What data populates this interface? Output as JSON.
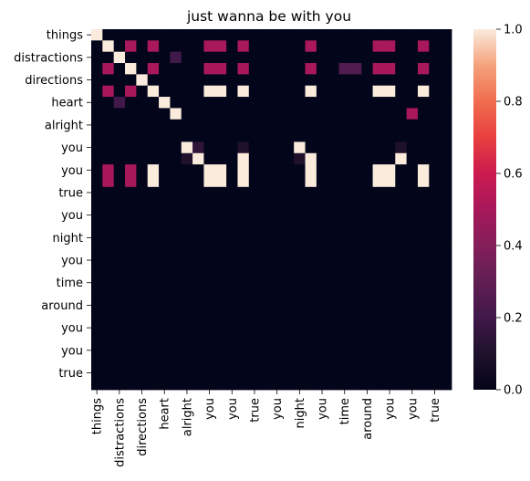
{
  "chart_data": {
    "type": "heatmap",
    "title": "just wanna be with you",
    "xlabel": "",
    "ylabel": "",
    "row_tick_labels": [
      "things",
      "distractions",
      "directions",
      "heart",
      "alright",
      "you",
      "you",
      "true",
      "you",
      "night",
      "you",
      "time",
      "around",
      "you",
      "you",
      "true"
    ],
    "col_tick_labels": [
      "things",
      "distractions",
      "directions",
      "heart",
      "alright",
      "you",
      "you",
      "true",
      "you",
      "night",
      "you",
      "time",
      "around",
      "you",
      "you",
      "true"
    ],
    "tokens": [
      "things",
      "",
      "distractions",
      "",
      "directions",
      "",
      "heart",
      "",
      "alright",
      "",
      "you",
      "",
      "you",
      "",
      "true",
      "",
      "you",
      "",
      "night",
      "",
      "you",
      "",
      "time",
      "",
      "around",
      "",
      "you",
      "",
      "you",
      "",
      "true",
      ""
    ],
    "colorbar": {
      "min": 0,
      "max": 1,
      "ticks": [
        "0.0",
        "0.2",
        "0.4",
        "0.6",
        "0.8",
        "1.0"
      ],
      "colormap": "rocket"
    },
    "values": [
      [
        1,
        0,
        0,
        0,
        0,
        0,
        0,
        0,
        0,
        0,
        0,
        0,
        0,
        0,
        0,
        0,
        0,
        0,
        0,
        0,
        0,
        0,
        0,
        0,
        0,
        0,
        0,
        0,
        0,
        0,
        0,
        0
      ],
      [
        0,
        1,
        0,
        0.5,
        0,
        0.5,
        0,
        0,
        0,
        0,
        0.5,
        0.5,
        0,
        0.5,
        0,
        0,
        0,
        0,
        0,
        0.5,
        0,
        0,
        0,
        0,
        0,
        0.5,
        0.5,
        0,
        0,
        0.5,
        0,
        0
      ],
      [
        0,
        0,
        1,
        0,
        0,
        0,
        0,
        0.2,
        0,
        0,
        0,
        0,
        0,
        0,
        0,
        0,
        0,
        0,
        0,
        0,
        0,
        0,
        0,
        0,
        0,
        0,
        0,
        0,
        0,
        0,
        0,
        0
      ],
      [
        0,
        0.5,
        0,
        1,
        0,
        0.5,
        0,
        0,
        0,
        0,
        0.5,
        0.5,
        0,
        0.5,
        0,
        0,
        0,
        0,
        0,
        0.5,
        0,
        0,
        0.25,
        0.25,
        0,
        0.5,
        0.5,
        0,
        0,
        0.5,
        0,
        0
      ],
      [
        0,
        0,
        0,
        0,
        1,
        0,
        0,
        0,
        0,
        0,
        0,
        0,
        0,
        0,
        0,
        0,
        0,
        0,
        0,
        0,
        0,
        0,
        0,
        0,
        0,
        0,
        0,
        0,
        0,
        0,
        0,
        0
      ],
      [
        0,
        0.5,
        0,
        0.5,
        0,
        1,
        0,
        0,
        0,
        0,
        1,
        1,
        0,
        1,
        0,
        0,
        0,
        0,
        0,
        1,
        0,
        0,
        0,
        0,
        0,
        1,
        1,
        0,
        0,
        1,
        0,
        0
      ],
      [
        0,
        0,
        0.2,
        0,
        0,
        0,
        1,
        0,
        0,
        0,
        0,
        0,
        0,
        0,
        0,
        0,
        0,
        0,
        0,
        0,
        0,
        0,
        0,
        0,
        0,
        0,
        0,
        0,
        0,
        0,
        0,
        0
      ],
      [
        0,
        0,
        0,
        0,
        0,
        0,
        0,
        1,
        0,
        0,
        0,
        0,
        0,
        0,
        0,
        0,
        0,
        0,
        0,
        0,
        0,
        0,
        0,
        0,
        0,
        0,
        0,
        0,
        0.5,
        0,
        0,
        0
      ],
      [
        0,
        0,
        0,
        0,
        0,
        0,
        0,
        0,
        0,
        0,
        0,
        0,
        0,
        0,
        0,
        0,
        0,
        0,
        0,
        0,
        0,
        0,
        0,
        0,
        0,
        0,
        0,
        0,
        0,
        0,
        0,
        0
      ],
      [
        0,
        0,
        0,
        0,
        0,
        0,
        0,
        0,
        0,
        0,
        0,
        0,
        0,
        0,
        0,
        0,
        0,
        0,
        0,
        0,
        0,
        0,
        0,
        0,
        0,
        0,
        0,
        0,
        0,
        0,
        0,
        0
      ],
      [
        0,
        0,
        0,
        0,
        0,
        0,
        0,
        0,
        1,
        0.15,
        0,
        0,
        0,
        0.1,
        0,
        0,
        0,
        0,
        1,
        0,
        0,
        0,
        0,
        0,
        0,
        0,
        0,
        0.1,
        0,
        0,
        0,
        0
      ],
      [
        0,
        0,
        0,
        0,
        0,
        0,
        0,
        0,
        0.1,
        1,
        0,
        0,
        0,
        1,
        0,
        0,
        0,
        0,
        0.1,
        1,
        0,
        0,
        0,
        0,
        0,
        0,
        0,
        1,
        0,
        0,
        0,
        0
      ],
      [
        0,
        0.5,
        0,
        0.5,
        0,
        1,
        0,
        0,
        0,
        0,
        1,
        1,
        0,
        1,
        0,
        0,
        0,
        0,
        0,
        1,
        0,
        0,
        0,
        0,
        0,
        1,
        1,
        0,
        0,
        1,
        0,
        0
      ],
      [
        0,
        0.5,
        0,
        0.5,
        0,
        1,
        0,
        0,
        0,
        0,
        1,
        1,
        0,
        1,
        0,
        0,
        0,
        0,
        0,
        1,
        0,
        0,
        0,
        0,
        0,
        1,
        1,
        0,
        0,
        1,
        0,
        0
      ],
      [
        0,
        0,
        0,
        0,
        0,
        0,
        0,
        0,
        0,
        0,
        0,
        0,
        0,
        0,
        0,
        0,
        0,
        0,
        0,
        0,
        0,
        0,
        0,
        0,
        0,
        0,
        0,
        0,
        0,
        0,
        0,
        0
      ],
      [
        0,
        0,
        0,
        0,
        0,
        0,
        0,
        0,
        0,
        0,
        0,
        0,
        0,
        0,
        0,
        0,
        0,
        0,
        0,
        0,
        0,
        0,
        0,
        0,
        0,
        0,
        0,
        0,
        0,
        0,
        0,
        0
      ],
      [
        0,
        0,
        0,
        0,
        0,
        0,
        0,
        0,
        0,
        0,
        0,
        0,
        0,
        0,
        0,
        0,
        0,
        0,
        0,
        0,
        0,
        0,
        0,
        0,
        0,
        0,
        0,
        0,
        0,
        0,
        0,
        0
      ],
      [
        0,
        0,
        0,
        0,
        0,
        0,
        0,
        0,
        0,
        0,
        0,
        0,
        0,
        0,
        0,
        0,
        0,
        0,
        0,
        0,
        0,
        0,
        0,
        0,
        0,
        0,
        0,
        0,
        0,
        0,
        0,
        0
      ],
      [
        0,
        0,
        0,
        0,
        0,
        0,
        0,
        0,
        0,
        0,
        0,
        0,
        0,
        0,
        0,
        0,
        0,
        0,
        0,
        0,
        0,
        0,
        0,
        0,
        0,
        0,
        0,
        0,
        0,
        0,
        0,
        0
      ],
      [
        0,
        0,
        0,
        0,
        0,
        0,
        0,
        0,
        0,
        0,
        0,
        0,
        0,
        0,
        0,
        0,
        0,
        0,
        0,
        0,
        0,
        0,
        0,
        0,
        0,
        0,
        0,
        0,
        0,
        0,
        0,
        0
      ],
      [
        0,
        0,
        0,
        0,
        0,
        0,
        0,
        0,
        0,
        0,
        0,
        0,
        0,
        0,
        0,
        0,
        0,
        0,
        0,
        0,
        0,
        0,
        0,
        0,
        0,
        0,
        0,
        0,
        0,
        0,
        0,
        0
      ],
      [
        0,
        0,
        0,
        0,
        0,
        0,
        0,
        0,
        0,
        0,
        0,
        0,
        0,
        0,
        0,
        0,
        0,
        0,
        0,
        0,
        0,
        0,
        0,
        0,
        0,
        0,
        0,
        0,
        0,
        0,
        0,
        0
      ],
      [
        0,
        0,
        0,
        0,
        0,
        0,
        0,
        0,
        0,
        0,
        0,
        0,
        0,
        0,
        0,
        0,
        0,
        0,
        0,
        0,
        0,
        0,
        0,
        0,
        0,
        0,
        0,
        0,
        0,
        0,
        0,
        0
      ],
      [
        0,
        0,
        0,
        0,
        0,
        0,
        0,
        0,
        0,
        0,
        0,
        0,
        0,
        0,
        0,
        0,
        0,
        0,
        0,
        0,
        0,
        0,
        0,
        0,
        0,
        0,
        0,
        0,
        0,
        0,
        0,
        0
      ],
      [
        0,
        0,
        0,
        0,
        0,
        0,
        0,
        0,
        0,
        0,
        0,
        0,
        0,
        0,
        0,
        0,
        0,
        0,
        0,
        0,
        0,
        0,
        0,
        0,
        0,
        0,
        0,
        0,
        0,
        0,
        0,
        0
      ],
      [
        0,
        0,
        0,
        0,
        0,
        0,
        0,
        0,
        0,
        0,
        0,
        0,
        0,
        0,
        0,
        0,
        0,
        0,
        0,
        0,
        0,
        0,
        0,
        0,
        0,
        0,
        0,
        0,
        0,
        0,
        0,
        0
      ],
      [
        0,
        0,
        0,
        0,
        0,
        0,
        0,
        0,
        0,
        0,
        0,
        0,
        0,
        0,
        0,
        0,
        0,
        0,
        0,
        0,
        0,
        0,
        0,
        0,
        0,
        0,
        0,
        0,
        0,
        0,
        0,
        0
      ],
      [
        0,
        0,
        0,
        0,
        0,
        0,
        0,
        0,
        0,
        0,
        0,
        0,
        0,
        0,
        0,
        0,
        0,
        0,
        0,
        0,
        0,
        0,
        0,
        0,
        0,
        0,
        0,
        0,
        0,
        0,
        0,
        0
      ],
      [
        0,
        0,
        0,
        0,
        0,
        0,
        0,
        0,
        0,
        0,
        0,
        0,
        0,
        0,
        0,
        0,
        0,
        0,
        0,
        0,
        0,
        0,
        0,
        0,
        0,
        0,
        0,
        0,
        0,
        0,
        0,
        0
      ],
      [
        0,
        0,
        0,
        0,
        0,
        0,
        0,
        0,
        0,
        0,
        0,
        0,
        0,
        0,
        0,
        0,
        0,
        0,
        0,
        0,
        0,
        0,
        0,
        0,
        0,
        0,
        0,
        0,
        0,
        0,
        0,
        0
      ],
      [
        0,
        0,
        0,
        0,
        0,
        0,
        0,
        0,
        0,
        0,
        0,
        0,
        0,
        0,
        0,
        0,
        0,
        0,
        0,
        0,
        0,
        0,
        0,
        0,
        0,
        0,
        0,
        0,
        0,
        0,
        0,
        0
      ],
      [
        0,
        0,
        0,
        0,
        0,
        0,
        0,
        0,
        0,
        0,
        0,
        0,
        0,
        0,
        0,
        0,
        0,
        0,
        0,
        0,
        0,
        0,
        0,
        0,
        0,
        0,
        0,
        0,
        0,
        0,
        0,
        0
      ]
    ]
  }
}
